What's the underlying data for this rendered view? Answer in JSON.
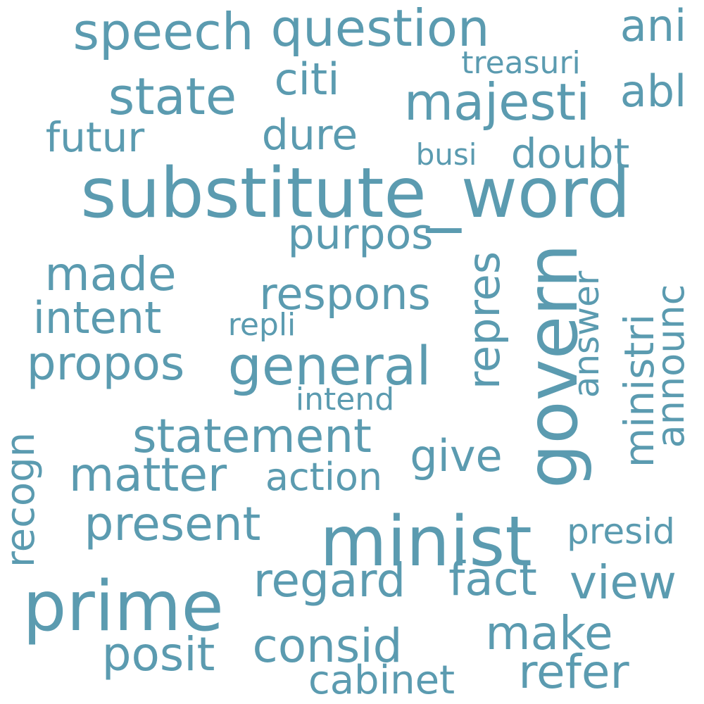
{
  "color": "#5b9bb0",
  "words": [
    {
      "text": "substitute_word",
      "vertical": false
    },
    {
      "text": "minist",
      "vertical": false
    },
    {
      "text": "prime",
      "vertical": false
    },
    {
      "text": "govern",
      "vertical": true
    },
    {
      "text": "question",
      "vertical": false
    },
    {
      "text": "speech",
      "vertical": false
    },
    {
      "text": "ani",
      "vertical": false
    },
    {
      "text": "state",
      "vertical": false
    },
    {
      "text": "citi",
      "vertical": false
    },
    {
      "text": "majesti",
      "vertical": false
    },
    {
      "text": "abl",
      "vertical": false
    },
    {
      "text": "treasuri",
      "vertical": false
    },
    {
      "text": "futur",
      "vertical": false
    },
    {
      "text": "dure",
      "vertical": false
    },
    {
      "text": "busi",
      "vertical": false
    },
    {
      "text": "doubt",
      "vertical": false
    },
    {
      "text": "purpos",
      "vertical": false
    },
    {
      "text": "made",
      "vertical": false
    },
    {
      "text": "respons",
      "vertical": false
    },
    {
      "text": "repres",
      "vertical": true
    },
    {
      "text": "answer",
      "vertical": true
    },
    {
      "text": "ministri",
      "vertical": true
    },
    {
      "text": "announc",
      "vertical": true
    },
    {
      "text": "intent",
      "vertical": false
    },
    {
      "text": "repli",
      "vertical": false
    },
    {
      "text": "propos",
      "vertical": false
    },
    {
      "text": "general",
      "vertical": false
    },
    {
      "text": "intend",
      "vertical": false
    },
    {
      "text": "recogn",
      "vertical": true
    },
    {
      "text": "statement",
      "vertical": false
    },
    {
      "text": "give",
      "vertical": false
    },
    {
      "text": "matter",
      "vertical": false
    },
    {
      "text": "action",
      "vertical": false
    },
    {
      "text": "present",
      "vertical": false
    },
    {
      "text": "presid",
      "vertical": false
    },
    {
      "text": "regard",
      "vertical": false
    },
    {
      "text": "fact",
      "vertical": false
    },
    {
      "text": "view",
      "vertical": false
    },
    {
      "text": "make",
      "vertical": false
    },
    {
      "text": "posit",
      "vertical": false
    },
    {
      "text": "consid",
      "vertical": false
    },
    {
      "text": "refer",
      "vertical": false
    },
    {
      "text": "cabinet",
      "vertical": false
    }
  ]
}
